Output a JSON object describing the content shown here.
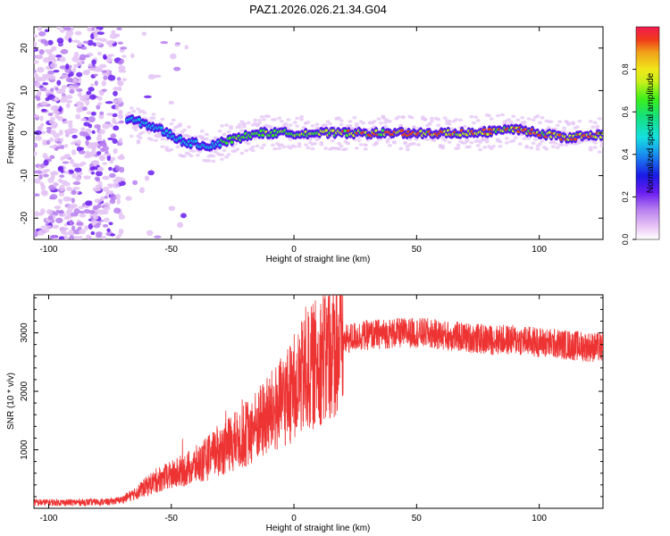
{
  "title": "PAZ1.2026.026.21.34.G04",
  "chart_data": [
    {
      "type": "heatmap",
      "xlabel": "Height of straight line (km)",
      "ylabel": "Frequency (Hz)",
      "xlim": [
        -106,
        126
      ],
      "ylim": [
        -25,
        25
      ],
      "xticks": [
        -100,
        -50,
        0,
        50,
        100
      ],
      "yticks": [
        -20,
        -10,
        0,
        10,
        20
      ],
      "colorbar": {
        "label": "Normalized spectral amplitude",
        "range": [
          0,
          1
        ],
        "ticks": [
          0.0,
          0.2,
          0.4,
          0.6,
          0.8
        ],
        "tick_labels": [
          "0.0",
          "0.2",
          "0.4",
          "0.6",
          "0.8"
        ]
      },
      "ridge": {
        "description_points_km": [
          -65,
          -55,
          -45,
          -35,
          -25,
          -15,
          0,
          15,
          30,
          50,
          60,
          75,
          90,
          100,
          110,
          125
        ],
        "frequency_hz": [
          3,
          1,
          -2,
          -3,
          -1.5,
          0,
          0,
          0,
          0,
          0,
          0,
          0,
          1,
          0,
          -1,
          -0.5
        ]
      }
    },
    {
      "type": "line",
      "xlabel": "Height of straight line (km)",
      "ylabel": "SNR (10 * v/v)",
      "xlim": [
        -106,
        126
      ],
      "ylim": [
        0,
        3650
      ],
      "xticks": [
        -100,
        -50,
        0,
        50,
        100
      ],
      "yticks": [
        1000,
        2000,
        3000
      ],
      "series": [
        {
          "name": "SNR",
          "color": "#ee3333",
          "x": [
            -106,
            -90,
            -75,
            -70,
            -65,
            -60,
            -55,
            -50,
            -45,
            -40,
            -35,
            -30,
            -25,
            -20,
            -15,
            -10,
            -5,
            0,
            5,
            10,
            15,
            20,
            25,
            30,
            35,
            40,
            45,
            50,
            55,
            60,
            65,
            70,
            75,
            80,
            85,
            90,
            95,
            100,
            105,
            110,
            115,
            120,
            126
          ],
          "y": [
            100,
            100,
            110,
            150,
            250,
            380,
            500,
            560,
            650,
            740,
            860,
            990,
            1120,
            1260,
            1420,
            1600,
            1790,
            2050,
            2300,
            2530,
            2720,
            2860,
            2940,
            2960,
            2980,
            2990,
            3000,
            3000,
            2990,
            2960,
            2940,
            2920,
            2900,
            2880,
            2880,
            2880,
            2860,
            2840,
            2820,
            2800,
            2780,
            2760,
            2750
          ]
        }
      ]
    }
  ]
}
